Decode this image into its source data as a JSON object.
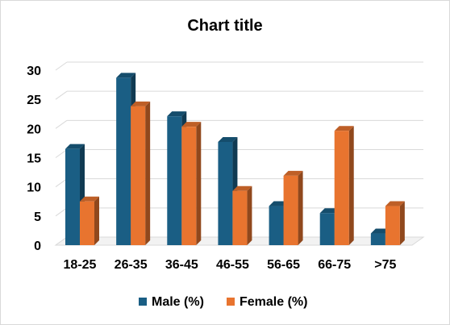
{
  "chart_data": {
    "type": "bar",
    "style": "3d-clustered-column",
    "title": "Chart title",
    "categories": [
      "18-25",
      "26-35",
      "36-45",
      "46-55",
      "56-65",
      "66-75",
      ">75"
    ],
    "series": [
      {
        "name": "Male (%)",
        "values": [
          16.5,
          28.7,
          22.1,
          17.7,
          6.7,
          5.5,
          2.0
        ],
        "color": "#1a5e84"
      },
      {
        "name": "Female (%)",
        "values": [
          7.5,
          23.8,
          20.3,
          9.3,
          11.9,
          19.6,
          6.7
        ],
        "color": "#e8742f"
      }
    ],
    "ylim": [
      0,
      30
    ],
    "yticks": [
      "0",
      "5",
      "10",
      "15",
      "20",
      "25",
      "30"
    ],
    "grid": true,
    "legend_position": "bottom"
  }
}
